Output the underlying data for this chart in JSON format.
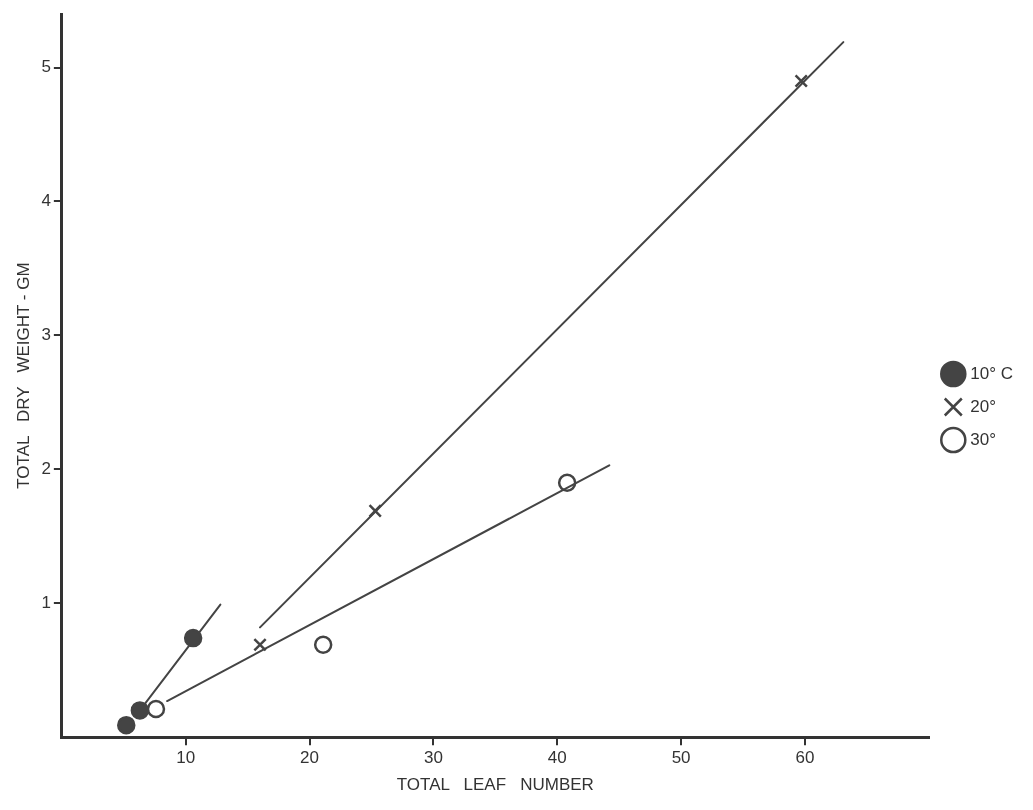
{
  "chart_data": {
    "type": "scatter",
    "xlabel": "TOTAL   LEAF   NUMBER",
    "ylabel": "TOTAL   DRY   WEIGHT - GM",
    "xlim": [
      0,
      70
    ],
    "ylim": [
      0,
      5.4
    ],
    "xticks": [
      10,
      20,
      30,
      40,
      50,
      60
    ],
    "yticks": [
      1,
      2,
      3,
      4,
      5
    ],
    "grid": false,
    "legend": "right",
    "series": [
      {
        "name": "10° C",
        "color": "#444444",
        "marker": "circle",
        "x": [
          5.2,
          6.3,
          10.6
        ],
        "values": [
          0.09,
          0.2,
          0.74
        ]
      },
      {
        "name": "20°",
        "color": "#444444",
        "marker": "cross",
        "x": [
          16.0,
          25.3,
          59.7
        ],
        "values": [
          0.69,
          1.69,
          4.9
        ]
      },
      {
        "name": "30°",
        "color": "#444444",
        "marker": "open circle",
        "x": [
          7.6,
          21.1,
          40.8
        ],
        "values": [
          0.21,
          0.69,
          1.9
        ]
      },
      {
        "type": "line",
        "color": "#444444",
        "marker": "none",
        "x": [
          6.3,
          12.8
        ],
        "values": [
          0.2,
          0.99
        ]
      },
      {
        "type": "line",
        "color": "#444444",
        "marker": "none",
        "x": [
          16.0,
          63.1
        ],
        "values": [
          0.82,
          5.19
        ]
      },
      {
        "type": "line",
        "color": "#444444",
        "marker": "none",
        "x": [
          8.5,
          44.2
        ],
        "values": [
          0.27,
          2.03
        ]
      }
    ]
  }
}
